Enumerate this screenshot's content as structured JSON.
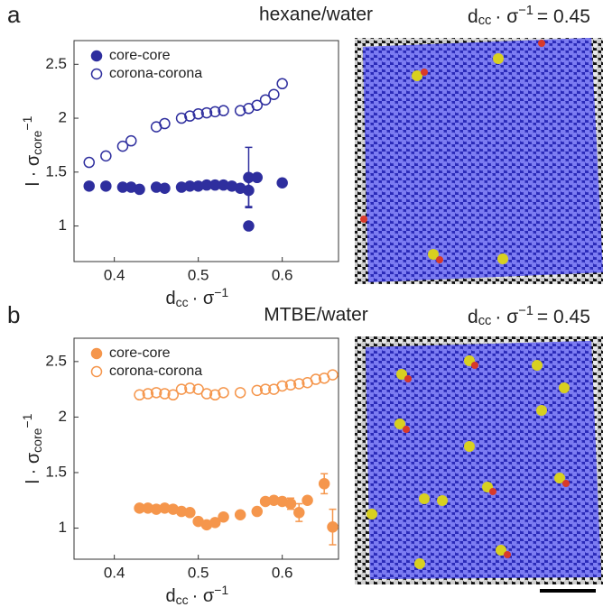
{
  "chart_data": [
    {
      "type": "scatter",
      "panel_label": "a",
      "title": "hexane/water",
      "annotation": [
        "d",
        "cc",
        "· σ",
        "−1",
        "= 0.45"
      ],
      "xlabel": [
        "d",
        "cc",
        "· σ",
        "−1"
      ],
      "ylabel": [
        "l · σ",
        "core",
        "−1"
      ],
      "xlim": [
        0.352,
        0.667
      ],
      "ylim": [
        0.67,
        2.72
      ],
      "xticks": [
        0.4,
        0.5,
        0.6
      ],
      "yticks": [
        1,
        1.5,
        2,
        2.5
      ],
      "legend": "upper left",
      "series": [
        {
          "name": "core-core",
          "color": "#2e2e9e",
          "marker": "filled",
          "x": [
            0.37,
            0.39,
            0.41,
            0.42,
            0.43,
            0.45,
            0.46,
            0.48,
            0.49,
            0.5,
            0.51,
            0.52,
            0.53,
            0.54,
            0.55,
            0.56,
            0.56,
            0.57,
            0.56,
            0.6
          ],
          "values": [
            1.37,
            1.37,
            1.36,
            1.36,
            1.34,
            1.36,
            1.35,
            1.36,
            1.37,
            1.37,
            1.38,
            1.38,
            1.38,
            1.37,
            1.35,
            1.45,
            1.33,
            1.45,
            1.0,
            1.4
          ],
          "errors": [
            null,
            null,
            null,
            null,
            null,
            null,
            null,
            null,
            null,
            null,
            null,
            null,
            null,
            null,
            null,
            0.28,
            0.15,
            null,
            null,
            null
          ]
        },
        {
          "name": "corona-corona",
          "color": "#2e2e9e",
          "marker": "open",
          "x": [
            0.37,
            0.39,
            0.41,
            0.42,
            0.45,
            0.46,
            0.48,
            0.49,
            0.5,
            0.51,
            0.52,
            0.53,
            0.55,
            0.56,
            0.57,
            0.58,
            0.59,
            0.6
          ],
          "values": [
            1.59,
            1.65,
            1.74,
            1.79,
            1.92,
            1.95,
            2.0,
            2.02,
            2.04,
            2.05,
            2.06,
            2.07,
            2.07,
            2.09,
            2.12,
            2.17,
            2.22,
            2.32
          ],
          "errors": [
            null,
            null,
            null,
            null,
            null,
            null,
            null,
            null,
            null,
            null,
            null,
            null,
            null,
            null,
            null,
            null,
            null,
            null
          ]
        }
      ]
    },
    {
      "type": "scatter",
      "panel_label": "b",
      "title": "MTBE/water",
      "annotation": [
        "d",
        "cc",
        "· σ",
        "−1",
        "= 0.45"
      ],
      "xlabel": [
        "d",
        "cc",
        "· σ",
        "−1"
      ],
      "ylabel": [
        "l · σ",
        "core",
        "−1"
      ],
      "xlim": [
        0.352,
        0.667
      ],
      "ylim": [
        0.72,
        2.71
      ],
      "xticks": [
        0.4,
        0.5,
        0.6
      ],
      "yticks": [
        1,
        1.5,
        2,
        2.5
      ],
      "legend": "upper left",
      "series": [
        {
          "name": "core-core",
          "color": "#f5964c",
          "marker": "filled",
          "x": [
            0.43,
            0.44,
            0.45,
            0.46,
            0.47,
            0.48,
            0.49,
            0.5,
            0.51,
            0.52,
            0.53,
            0.55,
            0.57,
            0.58,
            0.59,
            0.6,
            0.61,
            0.62,
            0.63,
            0.65,
            0.66
          ],
          "values": [
            1.18,
            1.18,
            1.17,
            1.18,
            1.17,
            1.15,
            1.14,
            1.06,
            1.03,
            1.05,
            1.1,
            1.12,
            1.15,
            1.24,
            1.25,
            1.24,
            1.22,
            1.14,
            1.25,
            1.4,
            1.01
          ],
          "errors": [
            null,
            null,
            null,
            null,
            null,
            null,
            null,
            null,
            null,
            null,
            null,
            null,
            null,
            null,
            null,
            null,
            0.05,
            0.08,
            null,
            0.09,
            0.16
          ]
        },
        {
          "name": "corona-corona",
          "color": "#f5964c",
          "marker": "open",
          "x": [
            0.43,
            0.44,
            0.45,
            0.46,
            0.47,
            0.48,
            0.49,
            0.5,
            0.51,
            0.52,
            0.53,
            0.55,
            0.57,
            0.58,
            0.59,
            0.6,
            0.61,
            0.62,
            0.63,
            0.64,
            0.65,
            0.66
          ],
          "values": [
            2.2,
            2.21,
            2.22,
            2.21,
            2.2,
            2.25,
            2.26,
            2.25,
            2.21,
            2.2,
            2.22,
            2.22,
            2.24,
            2.25,
            2.25,
            2.28,
            2.29,
            2.3,
            2.31,
            2.34,
            2.35,
            2.38
          ],
          "errors": [
            null,
            null,
            null,
            null,
            null,
            null,
            null,
            null,
            null,
            null,
            null,
            null,
            null,
            null,
            null,
            null,
            null,
            null,
            null,
            null,
            null,
            null
          ]
        }
      ]
    }
  ]
}
